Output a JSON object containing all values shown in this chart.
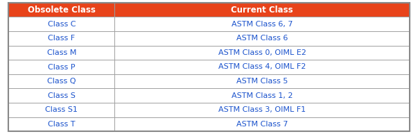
{
  "headers": [
    "Obsolete Class",
    "Current Class"
  ],
  "rows": [
    [
      "Class C",
      "ASTM Class 6, 7"
    ],
    [
      "Class F",
      "ASTM Class 6"
    ],
    [
      "Class M",
      "ASTM Class 0, OIML E2"
    ],
    [
      "Class P",
      "ASTM Class 4, OIML F2"
    ],
    [
      "Class Q",
      "ASTM Class 5"
    ],
    [
      "Class S",
      "ASTM Class 1, 2"
    ],
    [
      "Class S1",
      "ASTM Class 3, OIML F1"
    ],
    [
      "Class T",
      "ASTM Class 7"
    ]
  ],
  "header_bg": "#E8431A",
  "header_text_color": "#FFFFFF",
  "row_text_color": "#1a52cc",
  "border_color": "#999999",
  "outer_border_color": "#888888",
  "row_bg": "#FFFFFF",
  "col_split": 0.265,
  "font_size": 8.0,
  "header_font_size": 8.5
}
